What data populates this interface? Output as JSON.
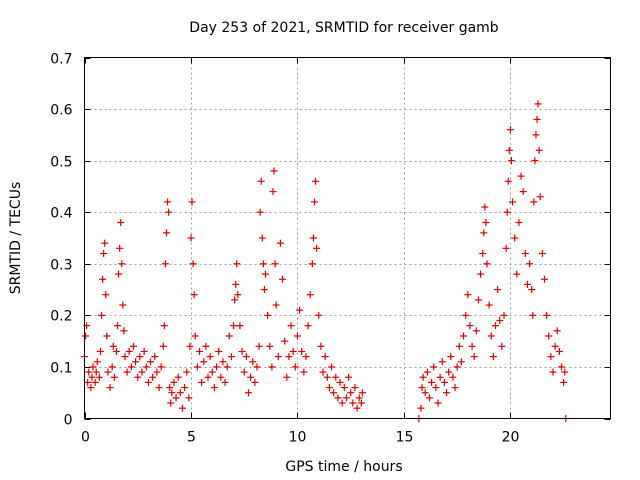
{
  "chart_data": {
    "type": "scatter",
    "title": "Day 253 of 2021, SRMTID for receiver gamb",
    "xlabel": "GPS time / hours",
    "ylabel": "SRMTID / TECUs",
    "xlim": [
      0,
      24.7
    ],
    "ylim": [
      0,
      0.7
    ],
    "xticks": [
      0,
      5,
      10,
      15,
      20
    ],
    "xtick_labels": [
      "0",
      "5",
      "10",
      "15",
      "20"
    ],
    "yticks": [
      0,
      0.1,
      0.2,
      0.3,
      0.4,
      0.5,
      0.6,
      0.7
    ],
    "ytick_labels": [
      "0",
      "0.1",
      "0.2",
      "0.3",
      "0.4",
      "0.5",
      "0.6",
      "0.7"
    ],
    "grid": true,
    "marker": "+",
    "color": "#e00000",
    "series": [
      {
        "name": "SRMTID",
        "points": [
          [
            0.0,
            0.12
          ],
          [
            0.05,
            0.16
          ],
          [
            0.1,
            0.18
          ],
          [
            0.15,
            0.07
          ],
          [
            0.2,
            0.09
          ],
          [
            0.3,
            0.06
          ],
          [
            0.35,
            0.08
          ],
          [
            0.4,
            0.1
          ],
          [
            0.5,
            0.07
          ],
          [
            0.55,
            0.09
          ],
          [
            0.6,
            0.11
          ],
          [
            0.7,
            0.08
          ],
          [
            0.75,
            0.13
          ],
          [
            0.8,
            0.2
          ],
          [
            0.85,
            0.27
          ],
          [
            0.9,
            0.32
          ],
          [
            0.95,
            0.34
          ],
          [
            1.0,
            0.24
          ],
          [
            1.05,
            0.16
          ],
          [
            1.1,
            0.09
          ],
          [
            1.2,
            0.06
          ],
          [
            1.3,
            0.1
          ],
          [
            1.35,
            0.14
          ],
          [
            1.4,
            0.08
          ],
          [
            1.5,
            0.13
          ],
          [
            1.55,
            0.18
          ],
          [
            1.6,
            0.28
          ],
          [
            1.65,
            0.33
          ],
          [
            1.7,
            0.38
          ],
          [
            1.75,
            0.3
          ],
          [
            1.8,
            0.22
          ],
          [
            1.85,
            0.17
          ],
          [
            1.9,
            0.12
          ],
          [
            2.0,
            0.09
          ],
          [
            2.1,
            0.13
          ],
          [
            2.2,
            0.1
          ],
          [
            2.3,
            0.14
          ],
          [
            2.4,
            0.11
          ],
          [
            2.5,
            0.08
          ],
          [
            2.6,
            0.12
          ],
          [
            2.7,
            0.09
          ],
          [
            2.8,
            0.13
          ],
          [
            2.9,
            0.1
          ],
          [
            3.0,
            0.07
          ],
          [
            3.1,
            0.11
          ],
          [
            3.2,
            0.08
          ],
          [
            3.3,
            0.12
          ],
          [
            3.4,
            0.09
          ],
          [
            3.5,
            0.06
          ],
          [
            3.6,
            0.1
          ],
          [
            3.7,
            0.14
          ],
          [
            3.75,
            0.18
          ],
          [
            3.8,
            0.3
          ],
          [
            3.85,
            0.36
          ],
          [
            3.9,
            0.42
          ],
          [
            3.95,
            0.4
          ],
          [
            4.0,
            0.06
          ],
          [
            4.05,
            0.03
          ],
          [
            4.1,
            0.05
          ],
          [
            4.2,
            0.07
          ],
          [
            4.3,
            0.04
          ],
          [
            4.4,
            0.08
          ],
          [
            4.5,
            0.05
          ],
          [
            4.6,
            0.02
          ],
          [
            4.7,
            0.06
          ],
          [
            4.8,
            0.09
          ],
          [
            4.9,
            0.04
          ],
          [
            4.95,
            0.14
          ],
          [
            5.0,
            0.35
          ],
          [
            5.05,
            0.42
          ],
          [
            5.1,
            0.3
          ],
          [
            5.15,
            0.24
          ],
          [
            5.2,
            0.16
          ],
          [
            5.3,
            0.1
          ],
          [
            5.4,
            0.13
          ],
          [
            5.5,
            0.07
          ],
          [
            5.6,
            0.11
          ],
          [
            5.7,
            0.14
          ],
          [
            5.8,
            0.08
          ],
          [
            5.9,
            0.12
          ],
          [
            6.0,
            0.09
          ],
          [
            6.1,
            0.06
          ],
          [
            6.2,
            0.1
          ],
          [
            6.3,
            0.13
          ],
          [
            6.4,
            0.08
          ],
          [
            6.5,
            0.11
          ],
          [
            6.6,
            0.07
          ],
          [
            6.7,
            0.1
          ],
          [
            6.8,
            0.16
          ],
          [
            6.9,
            0.12
          ],
          [
            7.0,
            0.18
          ],
          [
            7.05,
            0.23
          ],
          [
            7.1,
            0.26
          ],
          [
            7.15,
            0.3
          ],
          [
            7.2,
            0.24
          ],
          [
            7.3,
            0.18
          ],
          [
            7.4,
            0.13
          ],
          [
            7.5,
            0.09
          ],
          [
            7.6,
            0.12
          ],
          [
            7.7,
            0.05
          ],
          [
            7.8,
            0.08
          ],
          [
            7.9,
            0.11
          ],
          [
            8.0,
            0.07
          ],
          [
            8.1,
            0.1
          ],
          [
            8.2,
            0.14
          ],
          [
            8.25,
            0.4
          ],
          [
            8.3,
            0.46
          ],
          [
            8.35,
            0.35
          ],
          [
            8.4,
            0.3
          ],
          [
            8.45,
            0.25
          ],
          [
            8.5,
            0.28
          ],
          [
            8.6,
            0.2
          ],
          [
            8.7,
            0.14
          ],
          [
            8.8,
            0.1
          ],
          [
            8.85,
            0.44
          ],
          [
            8.9,
            0.48
          ],
          [
            8.95,
            0.3
          ],
          [
            9.0,
            0.22
          ],
          [
            9.1,
            0.12
          ],
          [
            9.2,
            0.34
          ],
          [
            9.3,
            0.27
          ],
          [
            9.4,
            0.15
          ],
          [
            9.5,
            0.08
          ],
          [
            9.6,
            0.12
          ],
          [
            9.7,
            0.18
          ],
          [
            9.8,
            0.13
          ],
          [
            9.9,
            0.1
          ],
          [
            10.0,
            0.16
          ],
          [
            10.1,
            0.21
          ],
          [
            10.2,
            0.13
          ],
          [
            10.3,
            0.09
          ],
          [
            10.4,
            0.12
          ],
          [
            10.5,
            0.18
          ],
          [
            10.6,
            0.24
          ],
          [
            10.7,
            0.3
          ],
          [
            10.75,
            0.35
          ],
          [
            10.8,
            0.42
          ],
          [
            10.85,
            0.46
          ],
          [
            10.9,
            0.33
          ],
          [
            11.0,
            0.2
          ],
          [
            11.1,
            0.14
          ],
          [
            11.2,
            0.09
          ],
          [
            11.3,
            0.12
          ],
          [
            11.4,
            0.08
          ],
          [
            11.5,
            0.06
          ],
          [
            11.6,
            0.1
          ],
          [
            11.7,
            0.05
          ],
          [
            11.8,
            0.08
          ],
          [
            11.9,
            0.04
          ],
          [
            12.0,
            0.07
          ],
          [
            12.1,
            0.03
          ],
          [
            12.2,
            0.06
          ],
          [
            12.3,
            0.04
          ],
          [
            12.4,
            0.08
          ],
          [
            12.5,
            0.05
          ],
          [
            12.6,
            0.03
          ],
          [
            12.7,
            0.06
          ],
          [
            12.8,
            0.02
          ],
          [
            12.9,
            0.04
          ],
          [
            13.0,
            0.03
          ],
          [
            13.05,
            0.05
          ],
          [
            15.7,
            0.0
          ],
          [
            15.8,
            0.02
          ],
          [
            15.85,
            0.06
          ],
          [
            15.9,
            0.08
          ],
          [
            16.0,
            0.05
          ],
          [
            16.1,
            0.09
          ],
          [
            16.2,
            0.04
          ],
          [
            16.3,
            0.07
          ],
          [
            16.4,
            0.1
          ],
          [
            16.5,
            0.06
          ],
          [
            16.6,
            0.03
          ],
          [
            16.7,
            0.08
          ],
          [
            16.8,
            0.11
          ],
          [
            16.9,
            0.07
          ],
          [
            17.0,
            0.05
          ],
          [
            17.1,
            0.09
          ],
          [
            17.2,
            0.12
          ],
          [
            17.3,
            0.08
          ],
          [
            17.4,
            0.06
          ],
          [
            17.5,
            0.1
          ],
          [
            17.6,
            0.14
          ],
          [
            17.7,
            0.11
          ],
          [
            17.8,
            0.16
          ],
          [
            17.9,
            0.2
          ],
          [
            18.0,
            0.24
          ],
          [
            18.1,
            0.18
          ],
          [
            18.2,
            0.14
          ],
          [
            18.3,
            0.12
          ],
          [
            18.4,
            0.17
          ],
          [
            18.5,
            0.23
          ],
          [
            18.6,
            0.28
          ],
          [
            18.7,
            0.32
          ],
          [
            18.75,
            0.36
          ],
          [
            18.8,
            0.41
          ],
          [
            18.85,
            0.38
          ],
          [
            18.9,
            0.3
          ],
          [
            19.0,
            0.22
          ],
          [
            19.1,
            0.16
          ],
          [
            19.2,
            0.12
          ],
          [
            19.3,
            0.18
          ],
          [
            19.4,
            0.25
          ],
          [
            19.5,
            0.19
          ],
          [
            19.6,
            0.14
          ],
          [
            19.7,
            0.2
          ],
          [
            19.8,
            0.33
          ],
          [
            19.85,
            0.4
          ],
          [
            19.9,
            0.46
          ],
          [
            19.95,
            0.52
          ],
          [
            20.0,
            0.56
          ],
          [
            20.05,
            0.5
          ],
          [
            20.1,
            0.42
          ],
          [
            20.2,
            0.35
          ],
          [
            20.3,
            0.28
          ],
          [
            20.4,
            0.38
          ],
          [
            20.5,
            0.47
          ],
          [
            20.6,
            0.44
          ],
          [
            20.7,
            0.32
          ],
          [
            20.8,
            0.26
          ],
          [
            20.9,
            0.3
          ],
          [
            21.0,
            0.25
          ],
          [
            21.05,
            0.2
          ],
          [
            21.1,
            0.42
          ],
          [
            21.15,
            0.5
          ],
          [
            21.2,
            0.55
          ],
          [
            21.25,
            0.58
          ],
          [
            21.3,
            0.61
          ],
          [
            21.35,
            0.52
          ],
          [
            21.4,
            0.43
          ],
          [
            21.5,
            0.32
          ],
          [
            21.6,
            0.27
          ],
          [
            21.7,
            0.2
          ],
          [
            21.8,
            0.16
          ],
          [
            21.9,
            0.12
          ],
          [
            22.0,
            0.09
          ],
          [
            22.1,
            0.14
          ],
          [
            22.2,
            0.17
          ],
          [
            22.3,
            0.13
          ],
          [
            22.4,
            0.1
          ],
          [
            22.5,
            0.07
          ],
          [
            22.55,
            0.09
          ],
          [
            22.6,
            0.0
          ]
        ]
      }
    ]
  }
}
